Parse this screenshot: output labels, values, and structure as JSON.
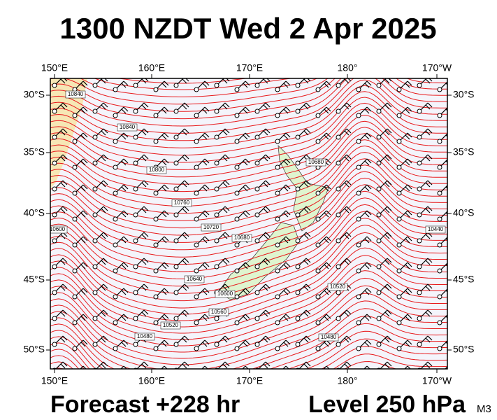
{
  "header": {
    "title": "1300 NZDT Wed 2 Apr 2025"
  },
  "map": {
    "longitudes": [
      "150°E",
      "160°E",
      "170°E",
      "180°",
      "170°W"
    ],
    "latitudes": [
      "30°S",
      "35°S",
      "40°S",
      "45°S",
      "50°S"
    ],
    "contour_labels": [
      "10840",
      "10840",
      "10800",
      "10760",
      "10720",
      "10680",
      "10640",
      "10600",
      "10560",
      "10520",
      "10480",
      "10440",
      "10600",
      "10520",
      "10480",
      "10680"
    ]
  },
  "footer": {
    "forecast": "Forecast +228 hr",
    "level": "Level 250 hPa",
    "model": "M3"
  }
}
